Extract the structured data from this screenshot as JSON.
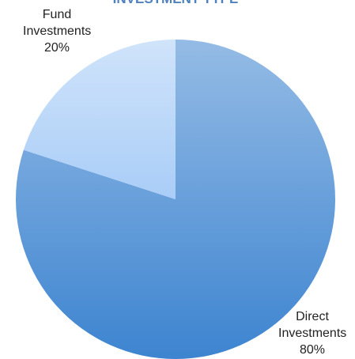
{
  "chart_data": {
    "type": "pie",
    "title": "INVESTMENT TYPE",
    "categories": [
      "Direct Investments",
      "Fund Investments"
    ],
    "values": [
      80,
      20
    ],
    "value_labels": [
      "80%",
      "20%"
    ],
    "colors": [
      "#3d84d0",
      "#a9cdf7"
    ]
  }
}
